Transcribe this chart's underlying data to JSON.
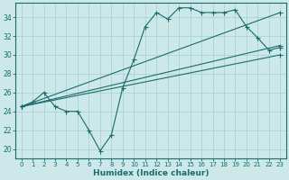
{
  "title": "",
  "xlabel": "Humidex (Indice chaleur)",
  "ylabel": "",
  "bg_color": "#cce8e8",
  "grid_color": "#aad4d4",
  "line_color": "#1a6b6b",
  "xlim": [
    -0.5,
    23.5
  ],
  "ylim": [
    19.0,
    35.5
  ],
  "yticks": [
    20,
    22,
    24,
    26,
    28,
    30,
    32,
    34
  ],
  "xticks": [
    0,
    1,
    2,
    3,
    4,
    5,
    6,
    7,
    8,
    9,
    10,
    11,
    12,
    13,
    14,
    15,
    16,
    17,
    18,
    19,
    20,
    21,
    22,
    23
  ],
  "xtick_labels": [
    "0",
    "1",
    "2",
    "3",
    "4",
    "5",
    "6",
    "7",
    "8",
    "9",
    "10",
    "11",
    "12",
    "13",
    "14",
    "15",
    "16",
    "17",
    "18",
    "19",
    "20",
    "21",
    "22",
    "23"
  ],
  "line1_x": [
    0,
    1,
    2,
    3,
    4,
    5,
    6,
    7,
    8,
    9,
    10,
    11,
    12,
    13,
    14,
    15,
    16,
    17,
    18,
    19,
    20,
    21,
    22,
    23
  ],
  "line1_y": [
    24.5,
    25.0,
    26.0,
    24.5,
    24.0,
    24.0,
    22.0,
    19.8,
    21.5,
    26.5,
    29.5,
    33.0,
    34.5,
    33.8,
    35.0,
    35.0,
    34.5,
    34.5,
    34.5,
    34.8,
    33.0,
    31.8,
    30.5,
    30.8
  ],
  "line2_x": [
    0,
    23
  ],
  "line2_y": [
    24.5,
    31.0
  ],
  "line3_x": [
    0,
    23
  ],
  "line3_y": [
    24.5,
    30.0
  ],
  "line4_x": [
    0,
    23
  ],
  "line4_y": [
    24.5,
    34.5
  ]
}
